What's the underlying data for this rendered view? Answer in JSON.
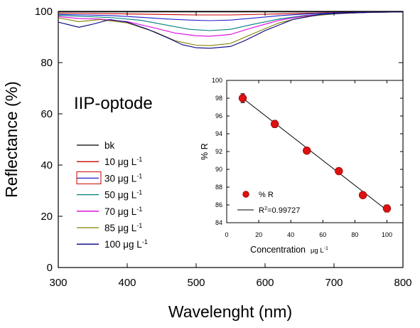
{
  "chart_data": [
    {
      "type": "line",
      "annotation": "IIP-optode",
      "xlabel": "Wavelenght (nm)",
      "ylabel": "Reflectance (%)",
      "xlim": [
        300,
        800
      ],
      "ylim": [
        0,
        100
      ],
      "xticks": [
        300,
        400,
        500,
        600,
        700,
        800
      ],
      "yticks": [
        0,
        20,
        40,
        60,
        80,
        100
      ],
      "grid": false,
      "legend": "left",
      "series": [
        {
          "name": "bk",
          "unit": "",
          "color": "#000000",
          "x": [
            300,
            400,
            500,
            600,
            700,
            800
          ],
          "y": [
            99.8,
            99.8,
            99.8,
            99.8,
            99.8,
            99.8
          ]
        },
        {
          "name": "10 μg L",
          "unit": "-1",
          "color": "#cc0000",
          "x": [
            300,
            350,
            400,
            450,
            500,
            550,
            600,
            650,
            700,
            750,
            800
          ],
          "y": [
            99.3,
            99.2,
            99.0,
            98.8,
            98.6,
            98.6,
            98.9,
            99.2,
            99.5,
            99.7,
            99.8
          ]
        },
        {
          "name": "30 μg L",
          "unit": "-1",
          "color": "#2020cc",
          "legend_boxed": true,
          "x": [
            300,
            340,
            380,
            420,
            460,
            490,
            520,
            550,
            580,
            620,
            660,
            700,
            750,
            800
          ],
          "y": [
            98.8,
            98.6,
            98.3,
            97.7,
            97.0,
            96.6,
            96.4,
            96.6,
            97.3,
            98.3,
            99.0,
            99.4,
            99.7,
            99.8
          ]
        },
        {
          "name": "50 μg L",
          "unit": "-1",
          "color": "#008080",
          "x": [
            300,
            340,
            380,
            420,
            460,
            490,
            520,
            550,
            580,
            620,
            660,
            700,
            750,
            800
          ],
          "y": [
            98.5,
            98.0,
            97.5,
            96.5,
            94.5,
            93.0,
            92.5,
            93.0,
            94.8,
            97.0,
            98.5,
            99.2,
            99.6,
            99.8
          ]
        },
        {
          "name": "70 μg L",
          "unit": "-1",
          "color": "#dd00dd",
          "x": [
            300,
            330,
            360,
            400,
            440,
            470,
            500,
            520,
            550,
            580,
            620,
            660,
            700,
            750,
            800
          ],
          "y": [
            98.0,
            97.2,
            97.0,
            96.0,
            93.5,
            91.5,
            90.5,
            90.3,
            91.0,
            93.5,
            96.5,
            98.3,
            99.1,
            99.6,
            99.8
          ]
        },
        {
          "name": "85 μg L",
          "unit": "-1",
          "color": "#808000",
          "x": [
            300,
            330,
            360,
            400,
            440,
            470,
            500,
            520,
            550,
            580,
            620,
            660,
            700,
            750,
            800
          ],
          "y": [
            97.5,
            96.0,
            96.8,
            95.5,
            92.0,
            88.5,
            86.8,
            86.6,
            87.5,
            91.0,
            95.5,
            98.0,
            99.0,
            99.6,
            99.8
          ]
        },
        {
          "name": "100 μg L",
          "unit": "-1",
          "color": "#000080",
          "x": [
            300,
            315,
            330,
            350,
            375,
            400,
            430,
            460,
            480,
            500,
            520,
            550,
            570,
            600,
            640,
            680,
            720,
            760,
            800
          ],
          "y": [
            95.8,
            94.8,
            93.8,
            95.0,
            96.8,
            95.8,
            93.0,
            89.5,
            87.0,
            85.8,
            85.6,
            86.3,
            88.5,
            92.5,
            96.8,
            98.8,
            99.4,
            99.7,
            99.8
          ]
        }
      ]
    },
    {
      "type": "scatter",
      "xlabel": "Concentration",
      "xlabel_unit_main": "μg L",
      "xlabel_unit_exp": "-1",
      "ylabel": "% R",
      "xlim": [
        0,
        110
      ],
      "ylim": [
        84,
        100
      ],
      "xticks": [
        0,
        20,
        40,
        60,
        80,
        100
      ],
      "yticks": [
        84,
        86,
        88,
        90,
        92,
        94,
        96,
        98,
        100
      ],
      "grid": false,
      "legend": "bottom-left",
      "series": [
        {
          "name": "% R",
          "color": "#dd1111",
          "x": [
            10,
            30,
            50,
            70,
            85,
            100
          ],
          "y": [
            98.0,
            95.1,
            92.1,
            89.8,
            87.1,
            85.6
          ],
          "err": [
            0.5,
            0.4,
            0.3,
            0.25,
            0.3,
            0.4
          ]
        }
      ],
      "fit": {
        "label": "R",
        "label_exp": "2",
        "label_value": "=0.99727",
        "x": [
          10,
          100
        ],
        "y": [
          98.0,
          85.4
        ]
      }
    }
  ]
}
